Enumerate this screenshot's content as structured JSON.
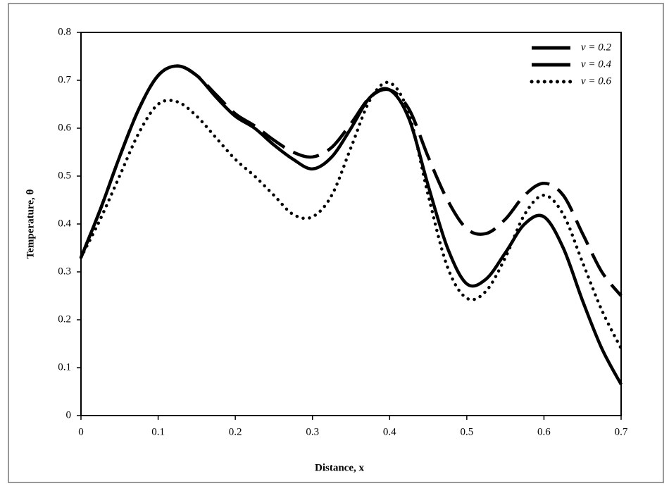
{
  "chart_data": {
    "type": "line",
    "x_label": "Distance, x",
    "y_label": "Temperature, θ",
    "x": [
      0,
      0.025,
      0.05,
      0.075,
      0.1,
      0.125,
      0.15,
      0.175,
      0.2,
      0.225,
      0.25,
      0.275,
      0.3,
      0.325,
      0.35,
      0.375,
      0.4,
      0.425,
      0.45,
      0.475,
      0.5,
      0.525,
      0.55,
      0.575,
      0.6,
      0.625,
      0.65,
      0.675,
      0.7
    ],
    "series": [
      {
        "name": "v = 0.2",
        "color": "#000000",
        "dash": "dashed",
        "values": [
          0.33,
          0.43,
          0.54,
          0.64,
          0.71,
          0.73,
          0.71,
          0.67,
          0.63,
          0.605,
          0.575,
          0.55,
          0.54,
          0.56,
          0.61,
          0.665,
          0.68,
          0.64,
          0.54,
          0.45,
          0.39,
          0.38,
          0.41,
          0.46,
          0.485,
          0.46,
          0.38,
          0.3,
          0.25
        ]
      },
      {
        "name": "v = 0.4",
        "color": "#000000",
        "dash": "solid",
        "values": [
          0.33,
          0.43,
          0.54,
          0.64,
          0.71,
          0.73,
          0.71,
          0.665,
          0.625,
          0.6,
          0.565,
          0.535,
          0.515,
          0.54,
          0.6,
          0.665,
          0.68,
          0.62,
          0.48,
          0.35,
          0.275,
          0.285,
          0.34,
          0.4,
          0.415,
          0.35,
          0.24,
          0.14,
          0.065
        ]
      },
      {
        "name": "v = 0.6",
        "color": "#000000",
        "dash": "dotted",
        "values": [
          0.33,
          0.41,
          0.5,
          0.59,
          0.65,
          0.655,
          0.625,
          0.58,
          0.535,
          0.5,
          0.46,
          0.42,
          0.415,
          0.46,
          0.56,
          0.66,
          0.695,
          0.63,
          0.46,
          0.31,
          0.245,
          0.26,
          0.33,
          0.42,
          0.46,
          0.42,
          0.32,
          0.22,
          0.14
        ]
      }
    ],
    "xlim": [
      0,
      0.7
    ],
    "xticks": [
      0,
      0.1,
      0.2,
      0.3,
      0.4,
      0.5,
      0.6,
      0.7
    ],
    "ylim": [
      0,
      0.8
    ],
    "yticks": [
      0,
      0.1,
      0.2,
      0.3,
      0.4,
      0.5,
      0.6,
      0.7,
      0.8
    ],
    "legend": "top-right",
    "grid": false
  }
}
